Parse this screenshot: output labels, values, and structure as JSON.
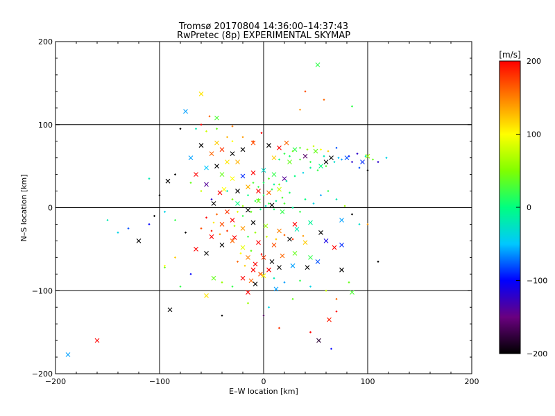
{
  "chart_data": {
    "type": "scatter",
    "title": "Tromsø 20170804 14:36:00–14:37:43",
    "subtitle": "RwPretec (8p) EXPERIMENTAL SKYMAP",
    "xlabel": "E–W location [km]",
    "ylabel": "N–S location [km]",
    "xlim": [
      -200,
      200
    ],
    "ylim": [
      -200,
      200
    ],
    "xticks": [
      -200,
      -100,
      0,
      100,
      200
    ],
    "yticks": [
      -200,
      -100,
      0,
      100,
      200
    ],
    "xtick_labels": [
      "−200",
      "−100",
      "0",
      "100",
      "200"
    ],
    "ytick_labels": [
      "−200",
      "−100",
      "0",
      "100",
      "200"
    ],
    "grid": true,
    "colorbar": {
      "label": "[m/s]",
      "range": [
        -200,
        200
      ],
      "ticks": [
        200,
        100,
        0,
        -100,
        -200
      ],
      "tick_labels": [
        "200",
        "100",
        "0",
        "−100",
        "−200"
      ],
      "placement": "right",
      "colormap": [
        "#000000",
        "#6a0080",
        "#0000ff",
        "#00c8ff",
        "#00ff80",
        "#80ff00",
        "#ffff00",
        "#ff8000",
        "#ff0000"
      ]
    },
    "point_markers": {
      "dot": "small diamond",
      "cross": "x"
    },
    "points": [
      [
        52,
        172,
        "cross",
        20
      ],
      [
        35,
        118,
        "dot",
        140
      ],
      [
        58,
        130,
        "dot",
        160
      ],
      [
        40,
        140,
        "dot",
        170
      ],
      [
        -60,
        137,
        "cross",
        110
      ],
      [
        -75,
        116,
        "cross",
        -60
      ],
      [
        -45,
        108,
        "cross",
        30
      ],
      [
        -52,
        110,
        "dot",
        160
      ],
      [
        -60,
        100,
        "dot",
        200
      ],
      [
        -80,
        95,
        "dot",
        -200
      ],
      [
        -65,
        95,
        "dot",
        -20
      ],
      [
        -55,
        92,
        "dot",
        80
      ],
      [
        -45,
        95,
        "dot",
        40
      ],
      [
        -30,
        98,
        "dot",
        150
      ],
      [
        85,
        122,
        "dot",
        20
      ],
      [
        -35,
        85,
        "dot",
        130
      ],
      [
        -30,
        80,
        "dot",
        100
      ],
      [
        -20,
        85,
        "dot",
        140
      ],
      [
        -10,
        80,
        "dot",
        170
      ],
      [
        -2,
        90,
        "dot",
        200
      ],
      [
        -60,
        75,
        "cross",
        -200
      ],
      [
        -45,
        78,
        "cross",
        120
      ],
      [
        -40,
        70,
        "cross",
        180
      ],
      [
        -30,
        65,
        "cross",
        -200
      ],
      [
        -20,
        70,
        "cross",
        -200
      ],
      [
        -10,
        78,
        "cross",
        170
      ],
      [
        5,
        75,
        "cross",
        -200
      ],
      [
        15,
        72,
        "cross",
        200
      ],
      [
        22,
        78,
        "cross",
        160
      ],
      [
        30,
        70,
        "cross",
        20
      ],
      [
        50,
        68,
        "cross",
        40
      ],
      [
        65,
        60,
        "cross",
        -200
      ],
      [
        80,
        60,
        "cross",
        -80
      ],
      [
        95,
        55,
        "cross",
        -90
      ],
      [
        100,
        62,
        "cross",
        60
      ],
      [
        -50,
        65,
        "cross",
        160
      ],
      [
        -35,
        55,
        "cross",
        110
      ],
      [
        -25,
        55,
        "cross",
        130
      ],
      [
        -70,
        60,
        "cross",
        -60
      ],
      [
        -55,
        48,
        "cross",
        -50
      ],
      [
        10,
        60,
        "cross",
        120
      ],
      [
        25,
        55,
        "cross",
        40
      ],
      [
        40,
        62,
        "cross",
        -160
      ],
      [
        55,
        50,
        "cross",
        0
      ],
      [
        60,
        55,
        "cross",
        -200
      ],
      [
        -92,
        32,
        "cross",
        -200
      ],
      [
        -65,
        40,
        "cross",
        200
      ],
      [
        -45,
        50,
        "cross",
        -200
      ],
      [
        -40,
        40,
        "cross",
        40
      ],
      [
        -55,
        28,
        "cross",
        -140
      ],
      [
        -30,
        35,
        "cross",
        100
      ],
      [
        -20,
        38,
        "cross",
        -90
      ],
      [
        -10,
        42,
        "cross",
        200
      ],
      [
        0,
        45,
        "cross",
        -30
      ],
      [
        10,
        40,
        "cross",
        20
      ],
      [
        20,
        35,
        "cross",
        -140
      ],
      [
        -42,
        18,
        "cross",
        200
      ],
      [
        -38,
        22,
        "cross",
        100
      ],
      [
        -25,
        20,
        "cross",
        -200
      ],
      [
        -15,
        25,
        "cross",
        130
      ],
      [
        -5,
        20,
        "cross",
        200
      ],
      [
        5,
        18,
        "cross",
        160
      ],
      [
        15,
        22,
        "cross",
        80
      ],
      [
        -48,
        5,
        "cross",
        -200
      ],
      [
        -35,
        -5,
        "cross",
        180
      ],
      [
        -25,
        5,
        "cross",
        0
      ],
      [
        -15,
        -3,
        "cross",
        -200
      ],
      [
        -5,
        8,
        "cross",
        40
      ],
      [
        8,
        3,
        "cross",
        -200
      ],
      [
        18,
        -5,
        "cross",
        20
      ],
      [
        -40,
        -20,
        "cross",
        170
      ],
      [
        -30,
        -15,
        "cross",
        200
      ],
      [
        -20,
        -25,
        "cross",
        140
      ],
      [
        -10,
        -18,
        "cross",
        -200
      ],
      [
        2,
        -22,
        "cross",
        60
      ],
      [
        15,
        -28,
        "cross",
        150
      ],
      [
        30,
        -20,
        "cross",
        200
      ],
      [
        45,
        -18,
        "cross",
        -10
      ],
      [
        55,
        -30,
        "cross",
        -200
      ],
      [
        75,
        -15,
        "cross",
        -60
      ],
      [
        -50,
        -35,
        "cross",
        200
      ],
      [
        -40,
        -45,
        "cross",
        -200
      ],
      [
        -30,
        -40,
        "cross",
        160
      ],
      [
        -20,
        -48,
        "cross",
        90
      ],
      [
        -5,
        -42,
        "cross",
        200
      ],
      [
        10,
        -45,
        "cross",
        170
      ],
      [
        25,
        -38,
        "cross",
        -200
      ],
      [
        40,
        -42,
        "cross",
        120
      ],
      [
        60,
        -40,
        "cross",
        -110
      ],
      [
        75,
        -45,
        "cross",
        -90
      ],
      [
        -65,
        -50,
        "cross",
        200
      ],
      [
        -55,
        -55,
        "cross",
        -200
      ],
      [
        -15,
        -60,
        "cross",
        150
      ],
      [
        -8,
        -68,
        "cross",
        200
      ],
      [
        0,
        -60,
        "cross",
        180
      ],
      [
        8,
        -65,
        "cross",
        -200
      ],
      [
        18,
        -58,
        "cross",
        160
      ],
      [
        30,
        -55,
        "cross",
        40
      ],
      [
        45,
        -60,
        "cross",
        20
      ],
      [
        -10,
        -75,
        "cross",
        200
      ],
      [
        -3,
        -80,
        "cross",
        170
      ],
      [
        5,
        -75,
        "cross",
        200
      ],
      [
        15,
        -72,
        "cross",
        -200
      ],
      [
        28,
        -70,
        "cross",
        -60
      ],
      [
        42,
        -72,
        "cross",
        -200
      ],
      [
        52,
        -65,
        "cross",
        -80
      ],
      [
        75,
        -75,
        "cross",
        -200
      ],
      [
        -20,
        -85,
        "cross",
        200
      ],
      [
        -12,
        -88,
        "cross",
        160
      ],
      [
        0,
        -82,
        "cross",
        100
      ],
      [
        -48,
        -85,
        "cross",
        40
      ],
      [
        -8,
        -92,
        "cross",
        -200
      ],
      [
        12,
        -98,
        "cross",
        -60
      ],
      [
        -15,
        -102,
        "cross",
        200
      ],
      [
        -55,
        -106,
        "cross",
        110
      ],
      [
        85,
        -102,
        "cross",
        30
      ],
      [
        -90,
        -123,
        "cross",
        -200
      ],
      [
        63,
        -135,
        "cross",
        190
      ],
      [
        53,
        -160,
        "cross",
        -180
      ],
      [
        -160,
        -160,
        "cross",
        200
      ],
      [
        -188,
        -177,
        "cross",
        -60
      ],
      [
        -120,
        -40,
        "cross",
        -200
      ],
      [
        -28,
        -36,
        "cross",
        200
      ],
      [
        32,
        -26,
        "cross",
        -20
      ],
      [
        68,
        -48,
        "cross",
        200
      ],
      [
        -15,
        -35,
        "dot",
        20
      ],
      [
        -8,
        -30,
        "dot",
        60
      ],
      [
        3,
        -35,
        "dot",
        80
      ],
      [
        12,
        -38,
        "dot",
        120
      ],
      [
        20,
        -33,
        "dot",
        160
      ],
      [
        28,
        -38,
        "dot",
        180
      ],
      [
        38,
        -34,
        "dot",
        140
      ],
      [
        -22,
        -55,
        "dot",
        100
      ],
      [
        -12,
        -52,
        "dot",
        40
      ],
      [
        -2,
        -56,
        "dot",
        200
      ],
      [
        -25,
        -65,
        "dot",
        160
      ],
      [
        -18,
        -70,
        "dot",
        120
      ],
      [
        10,
        -85,
        "dot",
        -20
      ],
      [
        20,
        -90,
        "dot",
        -60
      ],
      [
        35,
        -88,
        "dot",
        20
      ],
      [
        45,
        -95,
        "dot",
        -40
      ],
      [
        60,
        -100,
        "dot",
        80
      ],
      [
        70,
        -110,
        "dot",
        160
      ],
      [
        -30,
        -95,
        "dot",
        20
      ],
      [
        -40,
        -90,
        "dot",
        60
      ],
      [
        -70,
        -80,
        "dot",
        -100
      ],
      [
        -95,
        -72,
        "dot",
        40
      ],
      [
        -85,
        -60,
        "dot",
        120
      ],
      [
        -75,
        -30,
        "dot",
        -200
      ],
      [
        -85,
        -15,
        "dot",
        20
      ],
      [
        -95,
        -5,
        "dot",
        -40
      ],
      [
        -105,
        -10,
        "dot",
        -200
      ],
      [
        -110,
        -20,
        "dot",
        -100
      ],
      [
        -100,
        15,
        "dot",
        -200
      ],
      [
        -110,
        35,
        "dot",
        -20
      ],
      [
        -85,
        40,
        "dot",
        -200
      ],
      [
        -70,
        30,
        "dot",
        40
      ],
      [
        -60,
        20,
        "dot",
        80
      ],
      [
        -50,
        10,
        "dot",
        -120
      ],
      [
        -45,
        -8,
        "dot",
        160
      ],
      [
        -55,
        -12,
        "dot",
        200
      ],
      [
        -60,
        -25,
        "dot",
        170
      ],
      [
        -50,
        -28,
        "dot",
        190
      ],
      [
        -42,
        -32,
        "dot",
        140
      ],
      [
        -48,
        -18,
        "dot",
        110
      ],
      [
        -35,
        -28,
        "dot",
        180
      ],
      [
        -28,
        -22,
        "dot",
        70
      ],
      [
        -20,
        -10,
        "dot",
        20
      ],
      [
        -12,
        -5,
        "dot",
        40
      ],
      [
        -3,
        -2,
        "dot",
        0
      ],
      [
        5,
        5,
        "dot",
        20
      ],
      [
        12,
        8,
        "dot",
        -10
      ],
      [
        18,
        12,
        "dot",
        30
      ],
      [
        25,
        18,
        "dot",
        10
      ],
      [
        -5,
        10,
        "dot",
        40
      ],
      [
        0,
        15,
        "dot",
        10
      ],
      [
        8,
        22,
        "dot",
        20
      ],
      [
        15,
        28,
        "dot",
        50
      ],
      [
        22,
        32,
        "dot",
        -20
      ],
      [
        30,
        38,
        "dot",
        0
      ],
      [
        38,
        42,
        "dot",
        -40
      ],
      [
        45,
        48,
        "dot",
        -10
      ],
      [
        52,
        45,
        "dot",
        20
      ],
      [
        60,
        50,
        "dot",
        30
      ],
      [
        68,
        55,
        "dot",
        -30
      ],
      [
        75,
        58,
        "dot",
        -60
      ],
      [
        82,
        62,
        "dot",
        -90
      ],
      [
        90,
        65,
        "dot",
        -120
      ],
      [
        98,
        62,
        "dot",
        -20
      ],
      [
        105,
        58,
        "dot",
        40
      ],
      [
        20,
        65,
        "dot",
        20
      ],
      [
        28,
        68,
        "dot",
        40
      ],
      [
        35,
        72,
        "dot",
        30
      ],
      [
        42,
        70,
        "dot",
        60
      ],
      [
        48,
        74,
        "dot",
        80
      ],
      [
        55,
        70,
        "dot",
        100
      ],
      [
        62,
        68,
        "dot",
        120
      ],
      [
        70,
        72,
        "dot",
        -80
      ],
      [
        15,
        58,
        "dot",
        0
      ],
      [
        25,
        62,
        "dot",
        10
      ],
      [
        35,
        58,
        "dot",
        30
      ],
      [
        45,
        55,
        "dot",
        20
      ],
      [
        58,
        62,
        "dot",
        -20
      ],
      [
        72,
        60,
        "dot",
        -50
      ],
      [
        85,
        55,
        "dot",
        -120
      ],
      [
        92,
        48,
        "dot",
        -80
      ],
      [
        100,
        45,
        "dot",
        -200
      ],
      [
        110,
        55,
        "dot",
        -120
      ],
      [
        118,
        60,
        "dot",
        -40
      ],
      [
        -10,
        30,
        "dot",
        30
      ],
      [
        -5,
        25,
        "dot",
        20
      ],
      [
        0,
        30,
        "dot",
        10
      ],
      [
        5,
        35,
        "dot",
        40
      ],
      [
        10,
        28,
        "dot",
        -10
      ],
      [
        -15,
        15,
        "dot",
        0
      ],
      [
        -8,
        8,
        "dot",
        20
      ],
      [
        2,
        2,
        "dot",
        -20
      ],
      [
        10,
        -2,
        "dot",
        10
      ],
      [
        20,
        5,
        "dot",
        30
      ],
      [
        28,
        0,
        "dot",
        -10
      ],
      [
        35,
        -5,
        "dot",
        20
      ],
      [
        -20,
        2,
        "dot",
        60
      ],
      [
        -25,
        -5,
        "dot",
        90
      ],
      [
        -30,
        10,
        "dot",
        50
      ],
      [
        -35,
        20,
        "dot",
        -20
      ],
      [
        40,
        10,
        "dot",
        0
      ],
      [
        48,
        5,
        "dot",
        -40
      ],
      [
        55,
        15,
        "dot",
        -60
      ],
      [
        62,
        20,
        "dot",
        20
      ],
      [
        70,
        10,
        "dot",
        -20
      ],
      [
        78,
        2,
        "dot",
        60
      ],
      [
        85,
        -8,
        "dot",
        -200
      ],
      [
        92,
        -20,
        "dot",
        -30
      ],
      [
        -130,
        -25,
        "dot",
        -80
      ],
      [
        -140,
        -30,
        "dot",
        -40
      ],
      [
        -150,
        -15,
        "dot",
        -20
      ],
      [
        100,
        -20,
        "dot",
        140
      ],
      [
        110,
        -65,
        "dot",
        -200
      ],
      [
        82,
        -90,
        "dot",
        40
      ],
      [
        -80,
        -95,
        "dot",
        20
      ],
      [
        -95,
        -70,
        "dot",
        100
      ],
      [
        28,
        -110,
        "dot",
        40
      ],
      [
        15,
        -145,
        "dot",
        180
      ],
      [
        45,
        -150,
        "dot",
        200
      ],
      [
        65,
        -170,
        "dot",
        -100
      ],
      [
        0,
        -130,
        "dot",
        -160
      ],
      [
        -40,
        -130,
        "dot",
        -200
      ],
      [
        70,
        -125,
        "dot",
        200
      ],
      [
        -15,
        -115,
        "dot",
        60
      ],
      [
        5,
        -120,
        "dot",
        -40
      ]
    ]
  }
}
